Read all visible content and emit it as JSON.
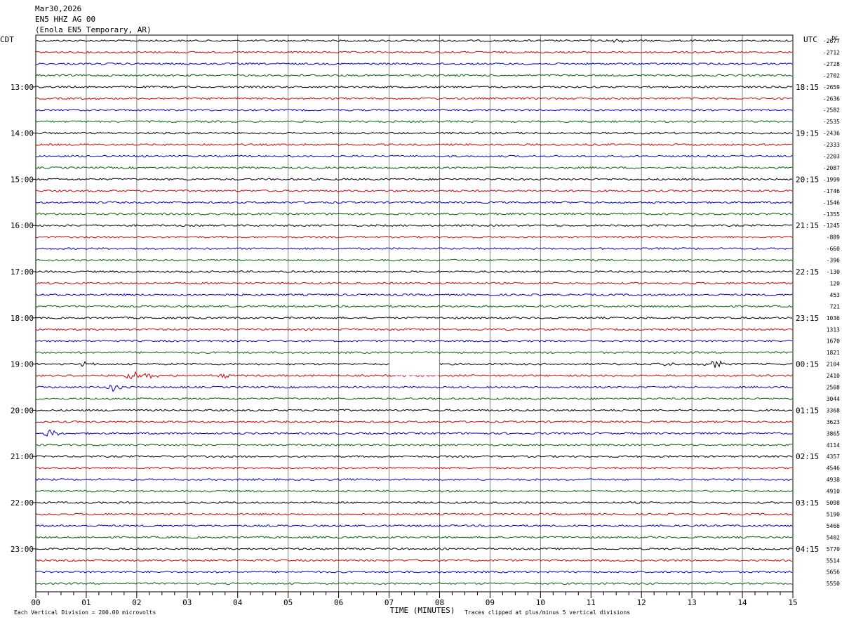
{
  "header": {
    "date": "Mar30,2026",
    "station": "EN5 HHZ AG 00",
    "location": "(Enola EN5 Temporary, AR)"
  },
  "left_zone": "CDT",
  "right_zone": "UTC",
  "dc_label": "DC",
  "footer": {
    "scale_note": "Each Vertical Division =  200.00 microvolts",
    "xlabel": "TIME (MINUTES)",
    "clip_note": "Traces clipped at plus/minus 5 vertical divisions"
  },
  "colors": {
    "cycle": [
      "#000000",
      "#d40000",
      "#0000c8",
      "#006400"
    ],
    "grid": "#808080"
  },
  "chart_data": {
    "type": "line",
    "title": "EN5 HHZ AG 00",
    "xlabel": "TIME (MINUTES)",
    "x_ticks": [
      "00",
      "01",
      "02",
      "03",
      "04",
      "05",
      "06",
      "07",
      "08",
      "09",
      "10",
      "11",
      "12",
      "13",
      "14",
      "15"
    ],
    "xlim": [
      0,
      15
    ],
    "rows": 48,
    "left_hour_labels": [
      "13:00",
      "14:00",
      "15:00",
      "16:00",
      "17:00",
      "18:00",
      "19:00",
      "20:00",
      "21:00",
      "22:00",
      "23:00"
    ],
    "right_hour_labels": [
      "18:15",
      "19:15",
      "20:15",
      "21:15",
      "22:15",
      "23:15",
      "00:15",
      "01:15",
      "02:15",
      "03:15",
      "04:15"
    ],
    "dc_offsets": [
      "-2677",
      "-2712",
      "-2728",
      "-2702",
      "-2659",
      "-2636",
      "-2582",
      "-2535",
      "-2436",
      "-2333",
      "-2203",
      "-2087",
      "-1999",
      "-1746",
      "-1546",
      "-1355",
      "-1245",
      "-889",
      "-660",
      "-396",
      "-130",
      "120",
      "453",
      "721",
      "1036",
      "1313",
      "1670",
      "1821",
      "2104",
      "2410",
      "2508",
      "3044",
      "3368",
      "3623",
      "3865",
      "4114",
      "4357",
      "4546",
      "4938",
      "4910",
      "5098",
      "5190",
      "5466",
      "5402",
      "5770",
      "5514",
      "5656",
      "5550"
    ],
    "gaps": [
      {
        "row": 28,
        "x_start": 7.02,
        "x_end": 7.98
      }
    ],
    "events": [
      {
        "row": 28,
        "x": 13.45,
        "amplitude": "medium"
      },
      {
        "row": 28,
        "x": 12.5,
        "amplitude": "small"
      },
      {
        "row": 28,
        "x": 1.0,
        "amplitude": "small"
      },
      {
        "row": 29,
        "x": 1.9,
        "amplitude": "medium"
      },
      {
        "row": 29,
        "x": 2.25,
        "amplitude": "medium"
      },
      {
        "row": 29,
        "x": 3.7,
        "amplitude": "small"
      },
      {
        "row": 30,
        "x": 1.55,
        "amplitude": "medium"
      },
      {
        "row": 34,
        "x": 0.3,
        "amplitude": "medium"
      },
      {
        "row": 0,
        "x": 11.5,
        "amplitude": "small"
      }
    ]
  }
}
